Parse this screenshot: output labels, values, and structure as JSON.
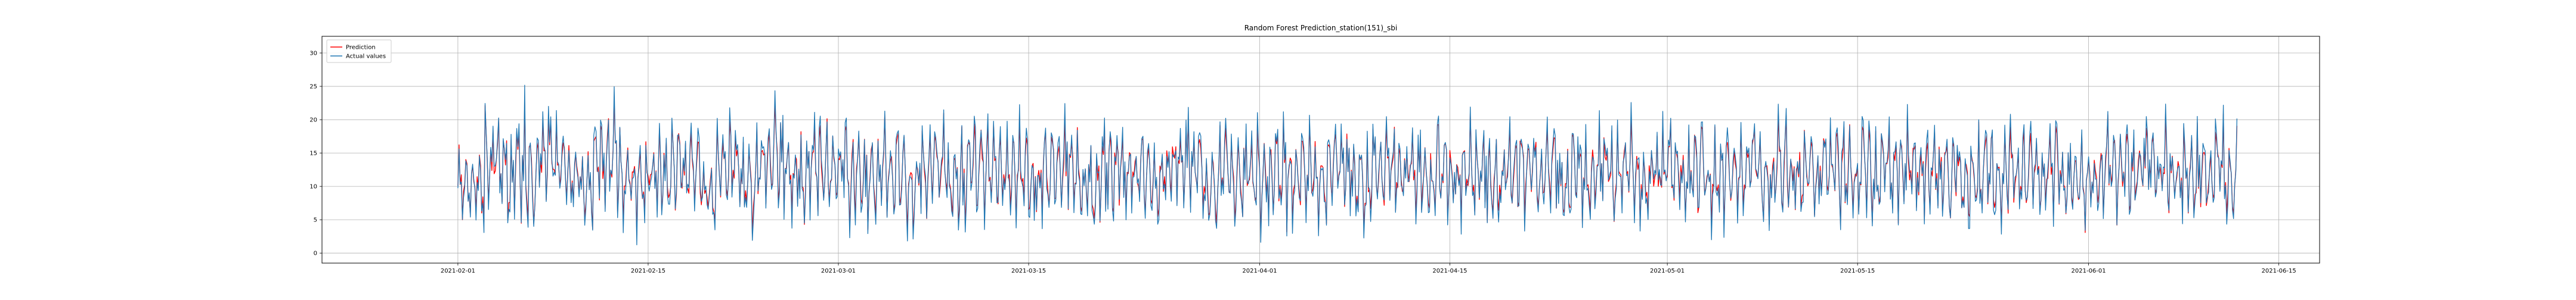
{
  "chart_data": {
    "type": "line",
    "title": "Random Forest Prediction_station(151)_sbi",
    "xlabel": "",
    "ylabel": "",
    "x_range": [
      "2021-01-22",
      "2021-06-18"
    ],
    "ylim": [
      -1.5,
      32.5
    ],
    "grid": true,
    "legend_position": "top-left",
    "x_ticks": [
      "2021-02-01",
      "2021-02-15",
      "2021-03-01",
      "2021-03-15",
      "2021-04-01",
      "2021-04-15",
      "2021-05-01",
      "2021-05-15",
      "2021-06-01",
      "2021-06-15"
    ],
    "y_ticks": [
      0,
      5,
      10,
      15,
      20,
      25,
      30
    ],
    "x_start": "2021-02-01",
    "x_end": "2021-06-11",
    "samples_per_day": 12,
    "series": [
      {
        "name": "Prediction",
        "color": "#ff0000",
        "daily_mean": [
          10.8,
          9.7,
          13.3,
          12.7,
          12.8,
          11.5,
          14.8,
          12.5,
          11.2,
          9.6,
          14.2,
          13.5,
          10.6,
          10.1,
          12.4,
          11.3,
          12.8,
          12.1,
          9.2,
          11.9,
          13.3,
          10.5,
          13.9,
          14.1,
          11.8,
          10.4,
          12.6,
          11.3,
          13.2,
          12.4,
          11.4,
          13.1,
          12.9,
          9.8,
          12.7,
          14.5,
          10.2,
          11.6,
          12.9,
          13.1,
          11.9,
          12.6,
          10.8,
          12.4,
          13.7,
          11.7,
          10.4,
          12.8,
          13.3,
          11.6,
          12.8,
          10.9,
          12.5,
          13.4,
          12.2,
          10.7,
          12.4,
          11.6,
          12.1,
          10.9,
          12.8,
          11.2,
          12.3,
          11.5,
          13.6,
          12.2,
          10.8,
          13.5,
          12.8,
          11.4,
          12.6,
          10.3,
          13.4,
          12.1,
          11.8,
          12.7,
          10.6,
          13.2,
          12.3,
          11.6,
          12.9,
          10.7,
          12.6,
          11.8,
          13.4,
          11.5,
          12.7,
          10.7,
          12.2,
          13.6,
          11.4,
          12.9,
          10.8,
          12.3,
          11.9,
          13.4,
          11.2,
          12.7,
          10.9,
          12.3,
          11.6,
          12.8,
          12.2,
          13.3,
          11.4,
          12.1,
          12.6,
          11.7,
          12.4,
          11.9,
          12.5,
          11.8,
          12.7,
          11.3,
          12.2,
          12.4,
          11.6,
          12.9,
          11.8,
          12.1,
          10.6,
          12.8,
          12.4,
          11.3,
          12.6,
          12.2,
          11.4,
          12.8,
          12.1,
          13.2,
          11.6
        ],
        "daily_amplitude": [
          4.5,
          6.1,
          8.0,
          7.7,
          8.2,
          7.1,
          7.8,
          6.7,
          5.8,
          6.4,
          6.9,
          7.4,
          4.6,
          5.8,
          6.7,
          7.1,
          6.4,
          6.9,
          5.7,
          7.0,
          7.9,
          5.9,
          7.6,
          6.9,
          6.4,
          6.0,
          6.8,
          7.3,
          7.7,
          6.2,
          6.6,
          7.2,
          7.0,
          5.6,
          6.8,
          7.5,
          5.7,
          6.4,
          6.9,
          7.1,
          6.5,
          6.9,
          5.9,
          6.7,
          7.2,
          6.4,
          5.6,
          7.0,
          7.4,
          6.2,
          6.9,
          5.8,
          6.7,
          7.4,
          6.8,
          5.9,
          6.8,
          6.2,
          6.8,
          6.0,
          7.0,
          6.1,
          6.6,
          6.5,
          7.3,
          6.6,
          5.9,
          7.3,
          6.9,
          6.2,
          6.8,
          5.6,
          7.1,
          6.6,
          6.5,
          6.9,
          5.8,
          7.2,
          6.8,
          6.1,
          6.9,
          5.7,
          6.8,
          6.4,
          7.1,
          6.3,
          6.9,
          5.8,
          6.6,
          7.3,
          6.2,
          7.0,
          5.9,
          6.8,
          6.5,
          7.1,
          6.2,
          6.9,
          5.9,
          6.7,
          6.4,
          6.9,
          6.6,
          7.1,
          6.2,
          6.6,
          6.8,
          6.4,
          6.7,
          6.5,
          6.8,
          6.4,
          6.9,
          6.1,
          6.6,
          6.7,
          6.3,
          6.9,
          6.4,
          6.6,
          5.8,
          6.9,
          6.7,
          6.2,
          6.8,
          6.6,
          6.2,
          6.9,
          6.6,
          7.1,
          6.3
        ]
      },
      {
        "name": "Actual values",
        "color": "#1f77b4",
        "daily_mean": [
          10.5,
          9.2,
          13.6,
          12.4,
          12.9,
          11.2,
          15.1,
          12.3,
          10.8,
          9.1,
          14.6,
          13.2,
          10.2,
          9.7,
          12.1,
          11.0,
          13.2,
          12.4,
          8.8,
          12.1,
          13.8,
          10.1,
          14.4,
          13.8,
          11.3,
          10.0,
          12.9,
          11.0,
          13.5,
          12.1,
          11.0,
          13.4,
          13.2,
          9.4,
          12.9,
          14.9,
          9.9,
          11.3,
          13.2,
          13.4,
          11.5,
          12.9,
          10.4,
          12.1,
          14.0,
          11.4,
          10.0,
          13.1,
          13.6,
          11.2,
          13.1,
          10.5,
          12.2,
          13.7,
          12.5,
          10.3,
          12.7,
          11.3,
          12.4,
          10.6,
          13.1,
          10.9,
          12.6,
          11.2,
          13.9,
          11.9,
          10.5,
          13.8,
          13.1,
          11.0,
          12.9,
          9.9,
          13.7,
          11.8,
          11.4,
          13.0,
          10.2,
          13.5,
          12.0,
          11.2,
          13.2,
          10.3,
          12.9,
          11.5,
          13.7,
          11.1,
          13.0,
          10.3,
          12.5,
          13.9,
          11.0,
          13.2,
          10.4,
          12.6,
          11.6,
          13.7,
          10.8,
          13.0,
          10.5,
          12.6,
          11.3,
          13.1,
          11.9,
          13.6,
          11.0,
          12.4,
          12.9,
          11.3,
          12.7,
          11.6,
          12.8,
          11.5,
          13.0,
          10.9,
          12.5,
          12.7,
          11.2,
          13.2,
          11.5,
          12.4,
          10.2,
          13.1,
          12.7,
          10.9,
          12.9,
          12.5,
          11.0,
          13.1,
          12.4,
          13.5,
          11.2
        ],
        "daily_amplitude": [
          5.0,
          6.8,
          8.9,
          8.6,
          9.2,
          7.9,
          8.8,
          7.6,
          6.5,
          7.2,
          7.8,
          8.4,
          5.2,
          6.5,
          7.5,
          8.0,
          7.2,
          7.8,
          6.4,
          7.9,
          8.9,
          6.6,
          8.5,
          7.8,
          7.2,
          6.7,
          7.6,
          8.2,
          8.7,
          7.0,
          7.4,
          8.1,
          7.9,
          6.3,
          7.7,
          8.5,
          6.4,
          7.2,
          7.8,
          8.0,
          7.3,
          7.8,
          6.6,
          7.5,
          8.1,
          7.2,
          6.3,
          7.9,
          8.3,
          7.0,
          7.8,
          6.5,
          7.5,
          8.3,
          7.7,
          6.6,
          7.6,
          7.0,
          7.7,
          6.7,
          7.9,
          6.9,
          7.4,
          7.3,
          8.2,
          7.4,
          6.6,
          8.2,
          7.8,
          7.0,
          7.7,
          6.3,
          8.0,
          7.4,
          7.3,
          7.8,
          6.5,
          8.1,
          7.7,
          6.9,
          7.8,
          6.4,
          7.7,
          7.2,
          8.0,
          7.1,
          7.8,
          6.5,
          7.4,
          8.2,
          7.0,
          7.9,
          6.6,
          7.7,
          7.3,
          8.0,
          7.0,
          7.8,
          6.6,
          7.5,
          7.2,
          7.8,
          7.4,
          8.0,
          7.0,
          7.4,
          7.7,
          7.2,
          7.5,
          7.3,
          7.7,
          7.2,
          7.8,
          6.9,
          7.4,
          7.5,
          7.1,
          7.8,
          7.2,
          7.4,
          6.5,
          7.8,
          7.6,
          7.0,
          7.7,
          7.4,
          7.0,
          7.8,
          7.4,
          8.0,
          7.1
        ]
      }
    ]
  }
}
